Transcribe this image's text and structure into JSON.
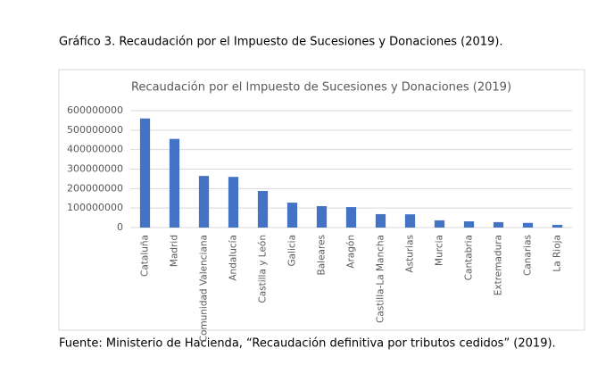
{
  "caption": "Gráfico 3. Recaudación por el Impuesto de Sucesiones y Donaciones (2019).",
  "chart_data": {
    "type": "bar",
    "title": "Recaudación por el Impuesto de Sucesiones y Donaciones (2019)",
    "categories": [
      "Cataluña",
      "Madrid",
      "Comunidad Valenciana",
      "Andalucía",
      "Castilla y León",
      "Galicia",
      "Baleares",
      "Aragón",
      "Castilla-La Mancha",
      "Asturias",
      "Murcia",
      "Cantabria",
      "Extremadura",
      "Canarias",
      "La Rioja"
    ],
    "values": [
      560000000,
      455000000,
      265000000,
      260000000,
      188000000,
      128000000,
      110000000,
      105000000,
      69000000,
      68000000,
      37000000,
      32000000,
      28000000,
      24000000,
      14000000
    ],
    "color": "#4472c4",
    "ylim": [
      0,
      600000000
    ],
    "yticks": [
      0,
      100000000,
      200000000,
      300000000,
      400000000,
      500000000,
      600000000
    ],
    "grid": true
  },
  "source": "Fuente: Ministerio de Hacienda, “Recaudación definitiva por tributos cedidos” (2019)."
}
